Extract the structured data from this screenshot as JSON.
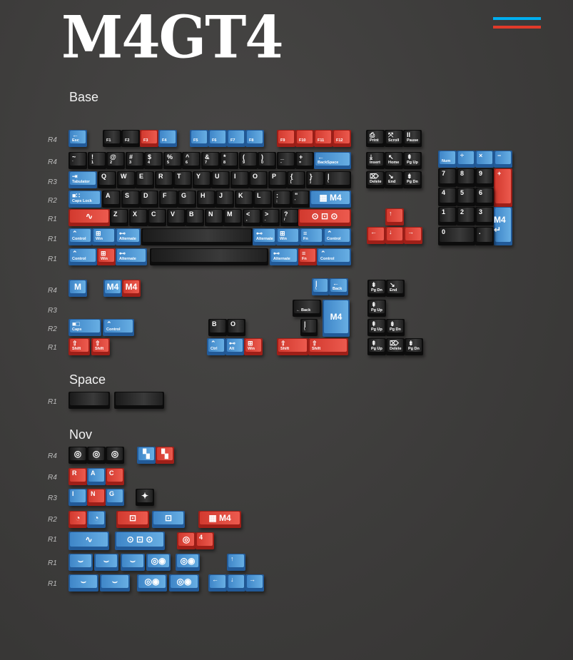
{
  "title": "M4GT4",
  "colors": {
    "blue": "#3f86c8",
    "red": "#d23a2f",
    "black": "#1b1b1b",
    "flag_top": "#00aeef",
    "flag_bottom": "#e03a2a",
    "background": "#3d3c3b"
  },
  "sections": {
    "base": "Base",
    "space": "Space",
    "nov": "Nov"
  },
  "base": {
    "rows": [
      {
        "label": "R4",
        "keys": [
          {
            "t": "←",
            "b": "Esc",
            "c": "blue"
          },
          {
            "b": "F1",
            "c": "black"
          },
          {
            "b": "F2",
            "c": "black"
          },
          {
            "b": "F3",
            "c": "red"
          },
          {
            "b": "F4",
            "c": "blue"
          },
          {
            "b": "F5",
            "c": "blue"
          },
          {
            "b": "F6",
            "c": "blue"
          },
          {
            "b": "F7",
            "c": "blue"
          },
          {
            "b": "F8",
            "c": "blue"
          },
          {
            "b": "F9",
            "c": "red"
          },
          {
            "b": "F10",
            "c": "red"
          },
          {
            "b": "F11",
            "c": "red"
          },
          {
            "b": "F12",
            "c": "red"
          },
          {
            "t": "⎙",
            "b": "Print",
            "c": "black"
          },
          {
            "t": "⤧",
            "b": "Scroll",
            "c": "black"
          },
          {
            "t": "II",
            "b": "Pause",
            "c": "black"
          }
        ]
      },
      {
        "label": "R4",
        "keys": [
          {
            "t": "~",
            "b": "`",
            "c": "black"
          },
          {
            "t": "!",
            "b": "1",
            "c": "black"
          },
          {
            "t": "@",
            "b": "2",
            "c": "black"
          },
          {
            "t": "#",
            "b": "3",
            "c": "black"
          },
          {
            "t": "$",
            "b": "4",
            "c": "black"
          },
          {
            "t": "%",
            "b": "5",
            "c": "black"
          },
          {
            "t": "^",
            "b": "6",
            "c": "black"
          },
          {
            "t": "&",
            "b": "7",
            "c": "black"
          },
          {
            "t": "*",
            "b": "8",
            "c": "black"
          },
          {
            "t": "(",
            "b": "9",
            "c": "black"
          },
          {
            "t": ")",
            "b": "0",
            "c": "black"
          },
          {
            "t": "_",
            "b": "-",
            "c": "black"
          },
          {
            "t": "+",
            "b": "=",
            "c": "black"
          },
          {
            "t": "←",
            "b": "BackSpace",
            "c": "blue"
          },
          {
            "t": "⤓",
            "b": "Insert",
            "c": "black"
          },
          {
            "t": "↖",
            "b": "Home",
            "c": "black"
          },
          {
            "t": "⇞",
            "b": "Pg Up",
            "c": "black"
          },
          {
            "b": "Num",
            "c": "blue"
          },
          {
            "t": "÷",
            "c": "blue"
          },
          {
            "t": "×",
            "c": "blue"
          },
          {
            "t": "−",
            "c": "blue"
          }
        ]
      },
      {
        "label": "R3",
        "keys": [
          {
            "t": "⇥",
            "b": "Tabulator",
            "c": "blue"
          },
          {
            "t": "Q",
            "c": "black"
          },
          {
            "t": "W",
            "c": "black"
          },
          {
            "t": "E",
            "c": "black"
          },
          {
            "t": "R",
            "c": "black"
          },
          {
            "t": "T",
            "c": "black"
          },
          {
            "t": "Y",
            "c": "black"
          },
          {
            "t": "U",
            "c": "black"
          },
          {
            "t": "I",
            "c": "black"
          },
          {
            "t": "O",
            "c": "black"
          },
          {
            "t": "P",
            "c": "black"
          },
          {
            "t": "{",
            "b": "[",
            "c": "black"
          },
          {
            "t": "}",
            "b": "]",
            "c": "black"
          },
          {
            "t": "|",
            "b": "\\",
            "c": "black"
          },
          {
            "t": "⌦",
            "b": "Delete",
            "c": "black"
          },
          {
            "t": "↘",
            "b": "End",
            "c": "black"
          },
          {
            "t": "⇟",
            "b": "Pg Dn",
            "c": "black"
          },
          {
            "t": "7",
            "c": "black"
          },
          {
            "t": "8",
            "c": "black"
          },
          {
            "t": "9",
            "c": "black"
          },
          {
            "t": "+",
            "c": "red"
          }
        ]
      },
      {
        "label": "R2",
        "keys": [
          {
            "t": "■∷",
            "b": "Caps Lock",
            "c": "blue"
          },
          {
            "t": "A",
            "c": "black"
          },
          {
            "t": "S",
            "c": "black"
          },
          {
            "t": "D",
            "c": "black"
          },
          {
            "t": "F",
            "c": "black"
          },
          {
            "t": "G",
            "c": "black"
          },
          {
            "t": "H",
            "c": "black"
          },
          {
            "t": "J",
            "c": "black"
          },
          {
            "t": "K",
            "c": "black"
          },
          {
            "t": "L",
            "c": "black"
          },
          {
            "t": ":",
            "b": ";",
            "c": "black"
          },
          {
            "t": "\"",
            "b": "'",
            "c": "black"
          },
          {
            "icon": "m4-logo-enter",
            "c": "blue"
          },
          {
            "t": "4",
            "c": "black"
          },
          {
            "t": "5",
            "c": "black"
          },
          {
            "t": "6",
            "c": "black"
          }
        ]
      },
      {
        "label": "R1",
        "keys": [
          {
            "icon": "race-track-graphic",
            "c": "red"
          },
          {
            "t": "Z",
            "c": "black"
          },
          {
            "t": "X",
            "c": "black"
          },
          {
            "t": "C",
            "c": "black"
          },
          {
            "t": "V",
            "c": "black"
          },
          {
            "t": "B",
            "c": "black"
          },
          {
            "t": "N",
            "c": "black"
          },
          {
            "t": "M",
            "c": "black"
          },
          {
            "t": "<",
            "b": ",",
            "c": "black"
          },
          {
            "t": ">",
            "b": ".",
            "c": "black"
          },
          {
            "t": "?",
            "b": "/",
            "c": "black"
          },
          {
            "icon": "race-car-graphic",
            "c": "red"
          },
          {
            "t": "↑",
            "c": "red"
          },
          {
            "t": "1",
            "c": "black"
          },
          {
            "t": "2",
            "c": "black"
          },
          {
            "t": "3",
            "c": "black"
          },
          {
            "icon": "numpad-enter-icon",
            "c": "blue"
          }
        ]
      },
      {
        "label": "R1",
        "keys": [
          {
            "t": "⌃",
            "b": "Control",
            "c": "blue"
          },
          {
            "t": "⊞",
            "b": "Win",
            "c": "blue"
          },
          {
            "t": "⊷",
            "b": "Alternate",
            "c": "blue"
          },
          {
            "c": "black"
          },
          {
            "t": "⊷",
            "b": "Alternate",
            "c": "blue"
          },
          {
            "t": "⊞",
            "b": "Win",
            "c": "blue"
          },
          {
            "t": "≡",
            "b": "Fn",
            "c": "blue"
          },
          {
            "t": "⌃",
            "b": "Control",
            "c": "blue"
          },
          {
            "t": "←",
            "c": "red"
          },
          {
            "t": "↓",
            "c": "red"
          },
          {
            "t": "→",
            "c": "red"
          },
          {
            "t": "0",
            "c": "black"
          },
          {
            "t": ".",
            "c": "black"
          }
        ]
      },
      {
        "label": "R1",
        "keys": [
          {
            "t": "⌃",
            "b": "Control",
            "c": "blue"
          },
          {
            "t": "⊞",
            "b": "Win",
            "c": "red"
          },
          {
            "t": "⊷",
            "b": "Alternate",
            "c": "blue"
          },
          {
            "c": "black"
          },
          {
            "t": "⊷",
            "b": "Alternate",
            "c": "blue"
          },
          {
            "t": "≡",
            "b": "Fn",
            "c": "red"
          },
          {
            "t": "⌃",
            "b": "Control",
            "c": "blue"
          }
        ]
      }
    ]
  },
  "extras": {
    "rows": [
      {
        "label": "R4",
        "keys": [
          {
            "icon": "m-logo",
            "c": "blue"
          },
          {
            "icon": "m4-logo",
            "c": "blue"
          },
          {
            "icon": "m4-logo",
            "c": "red"
          },
          {
            "t": "|",
            "b": "\\",
            "c": "blue"
          },
          {
            "t": "←",
            "b": "Back",
            "c": "blue"
          },
          {
            "t": "⇟",
            "b": "Pg Dn",
            "c": "black"
          },
          {
            "t": "↘",
            "b": "End",
            "c": "black"
          }
        ]
      },
      {
        "label": "R3",
        "keys": [
          {
            "b": "← Back",
            "c": "black"
          },
          {
            "icon": "m4-iso-enter-graphic",
            "c": "blue"
          },
          {
            "t": "⇞",
            "b": "Pg Up",
            "c": "black"
          }
        ]
      },
      {
        "label": "R2",
        "keys": [
          {
            "t": "■□",
            "b": "Caps",
            "c": "blue"
          },
          {
            "t": "⌃",
            "b": "Control",
            "c": "blue"
          },
          {
            "t": "B",
            "c": "black"
          },
          {
            "t": "O",
            "c": "black"
          },
          {
            "t": "|",
            "b": "\\",
            "c": "black"
          },
          {
            "t": "⇞",
            "b": "Pg Up",
            "c": "black"
          },
          {
            "t": "⇟",
            "b": "Pg Dn",
            "c": "black"
          }
        ]
      },
      {
        "label": "R1",
        "keys": [
          {
            "t": "⇧",
            "b": "Shift",
            "c": "red"
          },
          {
            "t": "⇧",
            "b": "Shift",
            "c": "red"
          },
          {
            "t": "⌃",
            "b": "Ctrl",
            "c": "blue"
          },
          {
            "t": "⊷",
            "b": "Alt",
            "c": "blue"
          },
          {
            "t": "⊞",
            "b": "Win",
            "c": "red"
          },
          {
            "t": "⇧",
            "b": "Shift",
            "c": "red"
          },
          {
            "t": "⇧",
            "b": "Shift",
            "c": "red"
          },
          {
            "t": "⇞",
            "b": "Pg Up",
            "c": "black"
          },
          {
            "t": "⌦",
            "b": "Delete",
            "c": "black"
          },
          {
            "t": "⇟",
            "b": "Pg Dn",
            "c": "black"
          }
        ]
      }
    ]
  },
  "space": {
    "rows": [
      {
        "label": "R1",
        "keys": [
          {
            "c": "black"
          },
          {
            "c": "black"
          }
        ]
      }
    ]
  },
  "nov": {
    "rows": [
      {
        "label": "R4",
        "keys": [
          {
            "icon": "target-circle-icon",
            "c": "black"
          },
          {
            "icon": "target-circle-icon",
            "c": "black"
          },
          {
            "icon": "target-circle-icon",
            "c": "black"
          },
          {
            "icon": "checkered-flag-icon",
            "c": "blue"
          },
          {
            "icon": "checkered-flag-icon",
            "c": "red"
          }
        ]
      },
      {
        "label": "R4",
        "keys": [
          {
            "t": "R",
            "c": "red"
          },
          {
            "t": "A",
            "c": "blue"
          },
          {
            "t": "C",
            "c": "red"
          }
        ]
      },
      {
        "label": "R3",
        "keys": [
          {
            "t": "I",
            "c": "blue"
          },
          {
            "t": "N",
            "c": "red"
          },
          {
            "t": "G",
            "c": "blue"
          },
          {
            "icon": "racer-logo-icon",
            "c": "black"
          }
        ]
      },
      {
        "label": "R2",
        "keys": [
          {
            "icon": "gauge-icon",
            "c": "red"
          },
          {
            "icon": "gauge-icon",
            "c": "blue"
          },
          {
            "icon": "car-front-graphic",
            "c": "red"
          },
          {
            "icon": "car-front-graphic",
            "c": "blue"
          },
          {
            "icon": "m4-logo-enter",
            "c": "red"
          }
        ]
      },
      {
        "label": "R1",
        "keys": [
          {
            "icon": "race-track-graphic",
            "c": "blue"
          },
          {
            "icon": "race-car-graphic",
            "c": "blue"
          },
          {
            "icon": "target-circle-icon",
            "c": "red"
          },
          {
            "t": "4",
            "c": "red"
          }
        ]
      },
      {
        "label": "R1",
        "keys": [
          {
            "icon": "wing-graphic",
            "c": "blue"
          },
          {
            "icon": "wing-graphic",
            "c": "blue"
          },
          {
            "icon": "wing-graphic",
            "c": "blue"
          },
          {
            "icon": "wheels-graphic",
            "c": "blue"
          },
          {
            "icon": "wheels-graphic",
            "c": "blue"
          },
          {
            "t": "↑",
            "c": "blue"
          }
        ]
      },
      {
        "label": "R1",
        "keys": [
          {
            "icon": "wing-graphic",
            "c": "blue"
          },
          {
            "icon": "wing-graphic",
            "c": "blue"
          },
          {
            "icon": "wheels-graphic",
            "c": "blue"
          },
          {
            "icon": "wheels-graphic",
            "c": "blue"
          },
          {
            "t": "←",
            "c": "blue"
          },
          {
            "t": "↓",
            "c": "blue"
          },
          {
            "t": "→",
            "c": "blue"
          }
        ]
      }
    ]
  }
}
